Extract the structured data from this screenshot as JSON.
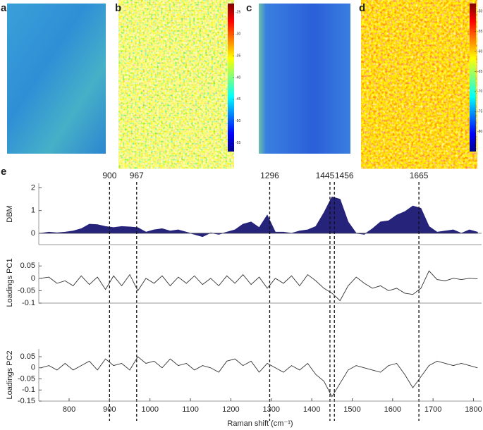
{
  "panels": [
    {
      "label": "a"
    },
    {
      "label": "b",
      "colorbar": {
        "clim": [
          -57,
          -23
        ],
        "ticks": [
          -25,
          -30,
          -35,
          -40,
          -45,
          -50,
          -55
        ]
      }
    },
    {
      "label": "c"
    },
    {
      "label": "d",
      "colorbar": {
        "clim": [
          -85,
          -48
        ],
        "ticks": [
          -50,
          -55,
          -60,
          -65,
          -70,
          -75,
          -80
        ]
      }
    },
    {
      "label": "e"
    }
  ],
  "chart_data": [
    {
      "type": "area",
      "ylabel": "DBM",
      "color": "#26237a",
      "reference_lines": [
        900,
        967,
        1296,
        1445,
        1456,
        1665
      ],
      "x": [
        730,
        750,
        770,
        790,
        810,
        830,
        850,
        870,
        890,
        910,
        930,
        950,
        970,
        990,
        1010,
        1030,
        1050,
        1070,
        1090,
        1110,
        1130,
        1150,
        1170,
        1190,
        1210,
        1230,
        1250,
        1270,
        1290,
        1310,
        1330,
        1350,
        1370,
        1390,
        1410,
        1430,
        1450,
        1470,
        1490,
        1510,
        1530,
        1550,
        1570,
        1590,
        1610,
        1630,
        1650,
        1670,
        1690,
        1710,
        1730,
        1750,
        1770,
        1790,
        1810
      ],
      "values": [
        0,
        0.05,
        0.02,
        0.05,
        0.1,
        0.2,
        0.4,
        0.38,
        0.3,
        0.25,
        0.3,
        0.28,
        0.25,
        0.05,
        0.15,
        0.2,
        0.1,
        0.15,
        0.05,
        -0.05,
        -0.15,
        0.02,
        -0.05,
        0.05,
        0.15,
        0.4,
        0.5,
        0.25,
        0.8,
        0.05,
        0.05,
        0,
        0.1,
        0.15,
        0.3,
        0.9,
        1.6,
        1.5,
        0.5,
        0,
        -0.05,
        0.2,
        0.5,
        0.55,
        0.8,
        0.95,
        1.2,
        1.1,
        0.3,
        0.05,
        0.1,
        0.15,
        0,
        0.15,
        0.05
      ],
      "xlim": [
        725,
        1820
      ],
      "ylim": [
        -0.5,
        2.2
      ],
      "yticks": [
        0,
        1,
        2
      ]
    },
    {
      "type": "line",
      "ylabel": "Loadings PC1",
      "color": "#333333",
      "x": [
        730,
        750,
        770,
        790,
        810,
        830,
        850,
        870,
        890,
        910,
        930,
        950,
        970,
        990,
        1010,
        1030,
        1050,
        1070,
        1090,
        1110,
        1130,
        1150,
        1170,
        1190,
        1210,
        1230,
        1250,
        1270,
        1290,
        1310,
        1330,
        1350,
        1370,
        1390,
        1410,
        1430,
        1450,
        1470,
        1490,
        1510,
        1530,
        1550,
        1570,
        1590,
        1610,
        1630,
        1650,
        1670,
        1690,
        1710,
        1730,
        1750,
        1770,
        1790,
        1810
      ],
      "values": [
        0,
        0.005,
        -0.02,
        -0.01,
        -0.03,
        0.01,
        -0.025,
        0.005,
        -0.045,
        0.01,
        -0.03,
        0.015,
        -0.05,
        0,
        -0.02,
        0.01,
        -0.03,
        0.005,
        -0.02,
        0.01,
        -0.025,
        0,
        -0.03,
        0.01,
        -0.02,
        0.015,
        -0.025,
        0.005,
        -0.04,
        0,
        -0.02,
        0.01,
        -0.03,
        0.015,
        -0.01,
        -0.04,
        -0.06,
        -0.09,
        -0.03,
        0.005,
        -0.02,
        -0.04,
        -0.03,
        -0.05,
        -0.04,
        -0.06,
        -0.065,
        -0.04,
        0.03,
        -0.005,
        -0.01,
        0,
        -0.005,
        0,
        -0.002
      ],
      "xlim": [
        725,
        1820
      ],
      "ylim": [
        -0.1,
        0.065
      ],
      "yticks": [
        0.05,
        0,
        -0.05,
        -0.1
      ]
    },
    {
      "type": "line",
      "ylabel": "Loadings PC2",
      "xlabel": "Raman shift (cm⁻¹)",
      "color": "#333333",
      "x": [
        730,
        750,
        770,
        790,
        810,
        830,
        850,
        870,
        890,
        910,
        930,
        950,
        970,
        990,
        1010,
        1030,
        1050,
        1070,
        1090,
        1110,
        1130,
        1150,
        1170,
        1190,
        1210,
        1230,
        1250,
        1270,
        1290,
        1310,
        1330,
        1350,
        1370,
        1390,
        1410,
        1430,
        1450,
        1470,
        1490,
        1510,
        1530,
        1550,
        1570,
        1590,
        1610,
        1630,
        1650,
        1670,
        1690,
        1710,
        1730,
        1750,
        1770,
        1790,
        1810
      ],
      "values": [
        0,
        0.01,
        -0.01,
        0.02,
        -0.01,
        0.01,
        0.03,
        -0.01,
        0.04,
        0.01,
        0.02,
        -0.01,
        0.05,
        0.02,
        0.03,
        0,
        0.04,
        0.01,
        0.02,
        -0.01,
        0.01,
        0,
        -0.02,
        0.03,
        0.04,
        0.01,
        0.03,
        -0.02,
        0.02,
        0,
        -0.02,
        0.01,
        -0.01,
        0.02,
        -0.03,
        -0.06,
        -0.13,
        -0.07,
        -0.01,
        0.01,
        0,
        -0.01,
        -0.02,
        0.01,
        0.02,
        -0.03,
        -0.09,
        -0.04,
        0.01,
        0.03,
        0.02,
        0.01,
        0.02,
        0.01,
        0
      ],
      "xlim": [
        725,
        1820
      ],
      "ylim": [
        -0.15,
        0.085
      ],
      "yticks": [
        0.05,
        0,
        -0.05,
        -0.1,
        -0.15
      ],
      "xticks": [
        800,
        900,
        1000,
        1100,
        1200,
        1300,
        1400,
        1500,
        1600,
        1700,
        1800
      ]
    }
  ]
}
